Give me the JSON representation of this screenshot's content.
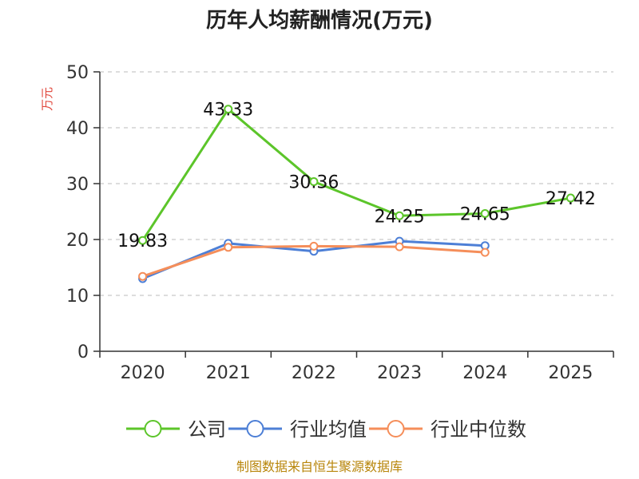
{
  "chart_data": {
    "type": "line",
    "title": "历年人均薪酬情况(万元)",
    "ylabel": "万元",
    "xlabel": "",
    "categories": [
      "2020",
      "2021",
      "2022",
      "2023",
      "2024",
      "2025"
    ],
    "ylim": [
      0,
      50
    ],
    "yticks": [
      0,
      10,
      20,
      30,
      40,
      50
    ],
    "grid": true,
    "legend_position": "bottom",
    "series": [
      {
        "name": "公司",
        "color": "#5cc52a",
        "values": [
          19.83,
          43.33,
          30.36,
          24.25,
          24.65,
          27.42
        ],
        "labels": [
          "19.83",
          "43.33",
          "30.36",
          "24.25",
          "24.65",
          "27.42"
        ]
      },
      {
        "name": "行业均值",
        "color": "#4d7fd6",
        "values": [
          13.0,
          19.3,
          17.9,
          19.7,
          18.9,
          null
        ]
      },
      {
        "name": "行业中位数",
        "color": "#f58e5a",
        "values": [
          13.4,
          18.6,
          18.8,
          18.7,
          17.7,
          null
        ]
      }
    ],
    "source": "制图数据来自恒生聚源数据库"
  }
}
